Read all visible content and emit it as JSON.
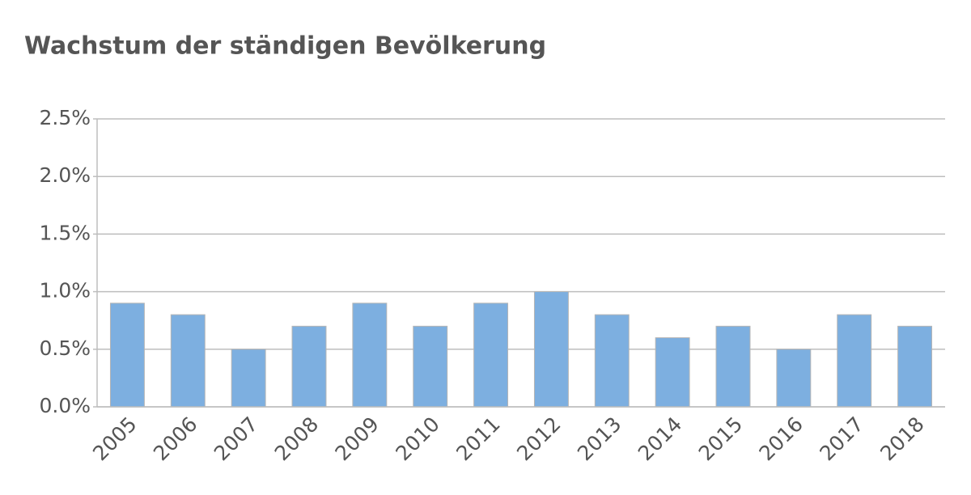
{
  "chart_data": {
    "type": "bar",
    "title": "Wachstum der ständigen Bevölkerung",
    "categories": [
      "2005",
      "2006",
      "2007",
      "2008",
      "2009",
      "2010",
      "2011",
      "2012",
      "2013",
      "2014",
      "2015",
      "2016",
      "2017",
      "2018"
    ],
    "values": [
      0.9,
      0.8,
      0.5,
      0.7,
      0.9,
      0.7,
      0.9,
      1.0,
      0.8,
      0.6,
      0.7,
      0.5,
      0.8,
      0.7
    ],
    "color": "#7dafe0",
    "ylim": [
      0,
      2.5
    ],
    "yticks": [
      {
        "value": 0,
        "label": "0.0%"
      },
      {
        "value": 0.5,
        "label": "0.5%"
      },
      {
        "value": 1.0,
        "label": "1.0%"
      },
      {
        "value": 1.5,
        "label": "1.5%"
      },
      {
        "value": 2.0,
        "label": "2.0%"
      },
      {
        "value": 2.5,
        "label": "2.5%"
      }
    ],
    "grid": true
  }
}
